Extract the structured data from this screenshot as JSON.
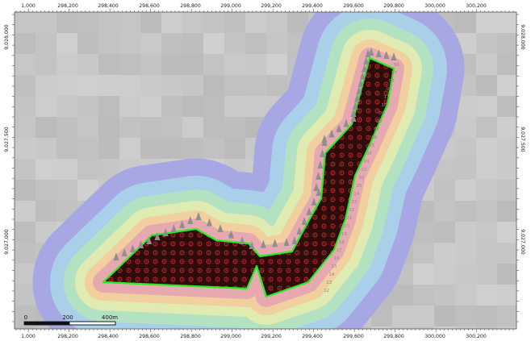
{
  "map": {
    "x_axis_labels": [
      "1,000",
      "298,200",
      "298,400",
      "298,600",
      "298,800",
      "299,000",
      "299,200",
      "299,400",
      "299,600",
      "299,800",
      "300,000",
      "300,200"
    ],
    "y_axis_labels_left": [
      "9,028,000",
      "9,027,500",
      "9,027,000"
    ],
    "y_axis_labels_right": [
      "9,028,000",
      "9,027,500",
      "9,027,000"
    ],
    "scale_bar": {
      "labels": [
        "0",
        "200",
        "400m"
      ]
    },
    "turbine_labels": [
      "56",
      "57",
      "06",
      "05",
      "11",
      "10",
      "09",
      "08",
      "07",
      "06",
      "05",
      "04",
      "03",
      "02",
      "01",
      "25",
      "24",
      "23",
      "22",
      "21",
      "20",
      "19",
      "18",
      "17",
      "16",
      "15",
      "14",
      "13",
      "12",
      "44"
    ],
    "colors": {
      "background": "#c4c4c4",
      "farm_fill": "#2e0c0c",
      "farm_outline": "#22ee22",
      "contours": [
        "#a7a7e4",
        "#a9d0e8",
        "#b3e2c3",
        "#dfebb0",
        "#f2cf9f",
        "#e6a9b0"
      ],
      "turbine_marker": "#8f8f8f",
      "receptor_dot": "#d72a2a"
    }
  }
}
